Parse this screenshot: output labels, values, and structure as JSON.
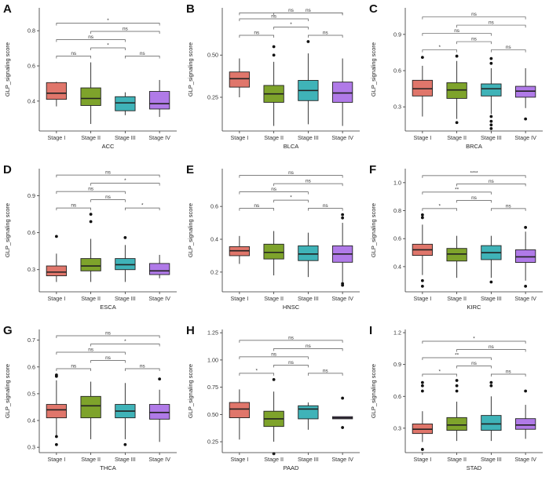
{
  "chart_data": [
    {
      "letter": "A",
      "type": "boxplot",
      "xlabel": "ACC",
      "ylabel": "GLP_signaling score",
      "ylim": [
        0.23,
        0.93
      ],
      "yticks": [
        0.4,
        0.6,
        0.8
      ],
      "yticklabels": [
        "0.4",
        "0.6",
        "0.8"
      ],
      "categories": [
        "Stage I",
        "Stage II",
        "Stage III",
        "Stage IV"
      ],
      "boxes": [
        {
          "min": 0.37,
          "q1": 0.41,
          "median": 0.445,
          "q3": 0.505,
          "max": 0.51,
          "outliers": []
        },
        {
          "min": 0.27,
          "q1": 0.375,
          "median": 0.415,
          "q3": 0.475,
          "max": 0.62,
          "outliers": []
        },
        {
          "min": 0.32,
          "q1": 0.345,
          "median": 0.39,
          "q3": 0.425,
          "max": 0.45,
          "outliers": []
        },
        {
          "min": 0.31,
          "q1": 0.355,
          "median": 0.385,
          "q3": 0.455,
          "max": 0.52,
          "outliers": []
        }
      ],
      "comparisons": [
        {
          "from": 0,
          "to": 1,
          "label": "ns"
        },
        {
          "from": 0,
          "to": 3,
          "label": "*"
        },
        {
          "from": 0,
          "to": 2,
          "label": "ns"
        },
        {
          "from": 1,
          "to": 3,
          "label": "ns"
        },
        {
          "from": 1,
          "to": 2,
          "label": "*"
        },
        {
          "from": 2,
          "to": 3,
          "label": "ns"
        }
      ]
    },
    {
      "letter": "B",
      "type": "boxplot",
      "xlabel": "BLCA",
      "ylabel": "GLP_signaling score",
      "ylim": [
        0.05,
        0.78
      ],
      "yticks": [
        0.25,
        0.5
      ],
      "yticklabels": [
        "0.25",
        "0.50"
      ],
      "categories": [
        "Stage I",
        "Stage II",
        "Stage III",
        "Stage IV"
      ],
      "boxes": [
        {
          "min": 0.25,
          "q1": 0.31,
          "median": 0.36,
          "q3": 0.4,
          "max": 0.48,
          "outliers": []
        },
        {
          "min": 0.08,
          "q1": 0.22,
          "median": 0.27,
          "q3": 0.32,
          "max": 0.46,
          "outliers": [
            0.5,
            0.55
          ]
        },
        {
          "min": 0.09,
          "q1": 0.23,
          "median": 0.29,
          "q3": 0.35,
          "max": 0.51,
          "outliers": [
            0.58
          ]
        },
        {
          "min": 0.08,
          "q1": 0.22,
          "median": 0.275,
          "q3": 0.34,
          "max": 0.48,
          "outliers": []
        }
      ],
      "comparisons": [
        {
          "from": 0,
          "to": 1,
          "label": "ns"
        },
        {
          "from": 0,
          "to": 2,
          "label": "ns"
        },
        {
          "from": 0,
          "to": 3,
          "label": "ns"
        },
        {
          "from": 1,
          "to": 2,
          "label": "*"
        },
        {
          "from": 1,
          "to": 3,
          "label": "ns"
        },
        {
          "from": 2,
          "to": 3,
          "label": "ns"
        }
      ]
    },
    {
      "letter": "C",
      "type": "boxplot",
      "xlabel": "BRCA",
      "ylabel": "GLP_signaling score",
      "ylim": [
        0.1,
        1.12
      ],
      "yticks": [
        0.3,
        0.6,
        0.9
      ],
      "yticklabels": [
        "0.3",
        "0.6",
        "0.9"
      ],
      "categories": [
        "Stage I",
        "Stage II",
        "Stage III",
        "Stage IV"
      ],
      "boxes": [
        {
          "min": 0.22,
          "q1": 0.39,
          "median": 0.45,
          "q3": 0.52,
          "max": 0.64,
          "outliers": [
            0.71
          ]
        },
        {
          "min": 0.2,
          "q1": 0.37,
          "median": 0.44,
          "q3": 0.5,
          "max": 0.68,
          "outliers": [
            0.72,
            0.17
          ]
        },
        {
          "min": 0.24,
          "q1": 0.39,
          "median": 0.45,
          "q3": 0.49,
          "max": 0.62,
          "outliers": [
            0.66,
            0.7,
            0.22,
            0.18,
            0.15,
            0.12
          ]
        },
        {
          "min": 0.29,
          "q1": 0.38,
          "median": 0.43,
          "q3": 0.47,
          "max": 0.62,
          "outliers": [
            0.2
          ]
        }
      ],
      "comparisons": [
        {
          "from": 0,
          "to": 1,
          "label": "*"
        },
        {
          "from": 0,
          "to": 2,
          "label": "ns"
        },
        {
          "from": 0,
          "to": 3,
          "label": "ns"
        },
        {
          "from": 1,
          "to": 2,
          "label": "ns"
        },
        {
          "from": 1,
          "to": 3,
          "label": "ns"
        },
        {
          "from": 2,
          "to": 3,
          "label": "ns"
        }
      ]
    },
    {
      "letter": "D",
      "type": "boxplot",
      "xlabel": "ESCA",
      "ylabel": "GLP_signaling score",
      "ylim": [
        0.12,
        1.12
      ],
      "yticks": [
        0.3,
        0.6,
        0.9
      ],
      "yticklabels": [
        "0.3",
        "0.6",
        "0.9"
      ],
      "categories": [
        "Stage I",
        "Stage II",
        "Stage III",
        "Stage IV"
      ],
      "boxes": [
        {
          "min": 0.2,
          "q1": 0.25,
          "median": 0.28,
          "q3": 0.33,
          "max": 0.43,
          "outliers": [
            0.57
          ]
        },
        {
          "min": 0.2,
          "q1": 0.29,
          "median": 0.33,
          "q3": 0.39,
          "max": 0.55,
          "outliers": [
            0.69,
            0.75
          ]
        },
        {
          "min": 0.2,
          "q1": 0.3,
          "median": 0.34,
          "q3": 0.39,
          "max": 0.5,
          "outliers": [
            0.56
          ]
        },
        {
          "min": 0.23,
          "q1": 0.26,
          "median": 0.29,
          "q3": 0.35,
          "max": 0.42,
          "outliers": []
        }
      ],
      "comparisons": [
        {
          "from": 0,
          "to": 1,
          "label": "ns"
        },
        {
          "from": 0,
          "to": 2,
          "label": "ns"
        },
        {
          "from": 0,
          "to": 3,
          "label": "ns"
        },
        {
          "from": 1,
          "to": 2,
          "label": "ns"
        },
        {
          "from": 1,
          "to": 3,
          "label": "*"
        },
        {
          "from": 2,
          "to": 3,
          "label": "*"
        }
      ]
    },
    {
      "letter": "E",
      "type": "boxplot",
      "xlabel": "HNSC",
      "ylabel": "GLP_signaling score",
      "ylim": [
        0.08,
        0.83
      ],
      "yticks": [
        0.2,
        0.4,
        0.6
      ],
      "yticklabels": [
        "0.2",
        "0.4",
        "0.6"
      ],
      "categories": [
        "Stage I",
        "Stage II",
        "Stage III",
        "Stage IV"
      ],
      "boxes": [
        {
          "min": 0.25,
          "q1": 0.3,
          "median": 0.33,
          "q3": 0.355,
          "max": 0.42,
          "outliers": []
        },
        {
          "min": 0.18,
          "q1": 0.28,
          "median": 0.32,
          "q3": 0.37,
          "max": 0.45,
          "outliers": []
        },
        {
          "min": 0.17,
          "q1": 0.27,
          "median": 0.31,
          "q3": 0.36,
          "max": 0.44,
          "outliers": []
        },
        {
          "min": 0.14,
          "q1": 0.26,
          "median": 0.31,
          "q3": 0.36,
          "max": 0.5,
          "outliers": [
            0.53,
            0.55,
            0.13,
            0.12
          ]
        }
      ],
      "comparisons": [
        {
          "from": 0,
          "to": 1,
          "label": "ns"
        },
        {
          "from": 0,
          "to": 2,
          "label": "ns"
        },
        {
          "from": 0,
          "to": 3,
          "label": "ns"
        },
        {
          "from": 1,
          "to": 2,
          "label": "*"
        },
        {
          "from": 1,
          "to": 3,
          "label": "ns"
        },
        {
          "from": 2,
          "to": 3,
          "label": "ns"
        }
      ]
    },
    {
      "letter": "F",
      "type": "boxplot",
      "xlabel": "KIRC",
      "ylabel": "GLP_signaling score",
      "ylim": [
        0.22,
        1.1
      ],
      "yticks": [
        0.4,
        0.6,
        0.8,
        1.0
      ],
      "yticklabels": [
        "0.4",
        "0.6",
        "0.8",
        "1.0"
      ],
      "categories": [
        "Stage I",
        "Stage II",
        "Stage III",
        "Stage IV"
      ],
      "boxes": [
        {
          "min": 0.34,
          "q1": 0.48,
          "median": 0.52,
          "q3": 0.56,
          "max": 0.7,
          "outliers": [
            0.75,
            0.77,
            0.3,
            0.26
          ]
        },
        {
          "min": 0.32,
          "q1": 0.44,
          "median": 0.49,
          "q3": 0.53,
          "max": 0.62,
          "outliers": []
        },
        {
          "min": 0.32,
          "q1": 0.45,
          "median": 0.5,
          "q3": 0.55,
          "max": 0.62,
          "outliers": [
            0.29
          ]
        },
        {
          "min": 0.3,
          "q1": 0.43,
          "median": 0.47,
          "q3": 0.52,
          "max": 0.65,
          "outliers": [
            0.68,
            0.26
          ]
        }
      ],
      "comparisons": [
        {
          "from": 0,
          "to": 1,
          "label": "*"
        },
        {
          "from": 0,
          "to": 2,
          "label": "**"
        },
        {
          "from": 0,
          "to": 3,
          "label": "****"
        },
        {
          "from": 1,
          "to": 2,
          "label": "ns"
        },
        {
          "from": 1,
          "to": 3,
          "label": "ns"
        },
        {
          "from": 2,
          "to": 3,
          "label": "ns"
        }
      ]
    },
    {
      "letter": "G",
      "type": "boxplot",
      "xlabel": "THCA",
      "ylabel": "GLP_signaling score",
      "ylim": [
        0.28,
        0.74
      ],
      "yticks": [
        0.3,
        0.4,
        0.5,
        0.6,
        0.7
      ],
      "yticklabels": [
        "0.3",
        "0.4",
        "0.5",
        "0.6",
        "0.7"
      ],
      "categories": [
        "Stage I",
        "Stage II",
        "Stage III",
        "Stage IV"
      ],
      "boxes": [
        {
          "min": 0.34,
          "q1": 0.41,
          "median": 0.44,
          "q3": 0.46,
          "max": 0.55,
          "outliers": [
            0.57,
            0.565,
            0.34,
            0.31
          ]
        },
        {
          "min": 0.33,
          "q1": 0.41,
          "median": 0.455,
          "q3": 0.49,
          "max": 0.545,
          "outliers": []
        },
        {
          "min": 0.33,
          "q1": 0.41,
          "median": 0.435,
          "q3": 0.46,
          "max": 0.54,
          "outliers": [
            0.31
          ]
        },
        {
          "min": 0.32,
          "q1": 0.405,
          "median": 0.43,
          "q3": 0.46,
          "max": 0.515,
          "outliers": [
            0.555
          ]
        }
      ],
      "comparisons": [
        {
          "from": 0,
          "to": 1,
          "label": "ns"
        },
        {
          "from": 0,
          "to": 2,
          "label": "ns"
        },
        {
          "from": 0,
          "to": 3,
          "label": "ns"
        },
        {
          "from": 1,
          "to": 2,
          "label": "ns"
        },
        {
          "from": 1,
          "to": 3,
          "label": "*"
        },
        {
          "from": 2,
          "to": 3,
          "label": "ns"
        }
      ]
    },
    {
      "letter": "H",
      "type": "boxplot",
      "xlabel": "PAAD",
      "ylabel": "GLP_signaling score",
      "ylim": [
        0.15,
        1.28
      ],
      "yticks": [
        0.25,
        0.5,
        0.75,
        1.0,
        1.25
      ],
      "yticklabels": [
        "0.25",
        "0.50",
        "0.75",
        "1.00",
        "1.25"
      ],
      "categories": [
        "Stage I",
        "Stage II",
        "Stage III",
        "Stage IV"
      ],
      "boxes": [
        {
          "min": 0.27,
          "q1": 0.47,
          "median": 0.55,
          "q3": 0.61,
          "max": 0.73,
          "outliers": []
        },
        {
          "min": 0.25,
          "q1": 0.39,
          "median": 0.46,
          "q3": 0.53,
          "max": 0.71,
          "outliers": [
            0.82,
            0.14
          ]
        },
        {
          "min": 0.36,
          "q1": 0.46,
          "median": 0.55,
          "q3": 0.58,
          "max": 0.61,
          "outliers": []
        },
        {
          "min": 0.46,
          "q1": 0.46,
          "median": 0.47,
          "q3": 0.48,
          "max": 0.48,
          "outliers": [
            0.65,
            0.38
          ]
        }
      ],
      "comparisons": [
        {
          "from": 0,
          "to": 1,
          "label": "*"
        },
        {
          "from": 0,
          "to": 2,
          "label": "ns"
        },
        {
          "from": 0,
          "to": 3,
          "label": "ns"
        },
        {
          "from": 1,
          "to": 2,
          "label": "ns"
        },
        {
          "from": 1,
          "to": 3,
          "label": "ns"
        },
        {
          "from": 2,
          "to": 3,
          "label": "ns"
        }
      ]
    },
    {
      "letter": "I",
      "type": "boxplot",
      "xlabel": "STAD",
      "ylabel": "GLP_signaling score",
      "ylim": [
        0.07,
        1.23
      ],
      "yticks": [
        0.3,
        0.6,
        0.9,
        1.2
      ],
      "yticklabels": [
        "0.3",
        "0.6",
        "0.9",
        "1.2"
      ],
      "categories": [
        "Stage I",
        "Stage II",
        "Stage III",
        "Stage IV"
      ],
      "boxes": [
        {
          "min": 0.17,
          "q1": 0.25,
          "median": 0.29,
          "q3": 0.34,
          "max": 0.46,
          "outliers": [
            0.65,
            0.7,
            0.73,
            0.1
          ]
        },
        {
          "min": 0.18,
          "q1": 0.28,
          "median": 0.33,
          "q3": 0.4,
          "max": 0.55,
          "outliers": [
            0.65,
            0.7,
            0.75
          ]
        },
        {
          "min": 0.18,
          "q1": 0.28,
          "median": 0.34,
          "q3": 0.42,
          "max": 0.6,
          "outliers": [
            0.7,
            0.73
          ]
        },
        {
          "min": 0.2,
          "q1": 0.29,
          "median": 0.33,
          "q3": 0.39,
          "max": 0.52,
          "outliers": [
            0.65
          ]
        }
      ],
      "comparisons": [
        {
          "from": 0,
          "to": 1,
          "label": "*"
        },
        {
          "from": 0,
          "to": 2,
          "label": "**"
        },
        {
          "from": 0,
          "to": 3,
          "label": "*"
        },
        {
          "from": 1,
          "to": 2,
          "label": "ns"
        },
        {
          "from": 1,
          "to": 3,
          "label": "ns"
        },
        {
          "from": 2,
          "to": 3,
          "label": "ns"
        }
      ]
    }
  ],
  "colors": {
    "stage_fill": [
      "#e0766b",
      "#7ea32b",
      "#3fb3b8",
      "#b07ae8"
    ],
    "line": "#222222",
    "bracket": "#555555",
    "axis": "#333333"
  }
}
